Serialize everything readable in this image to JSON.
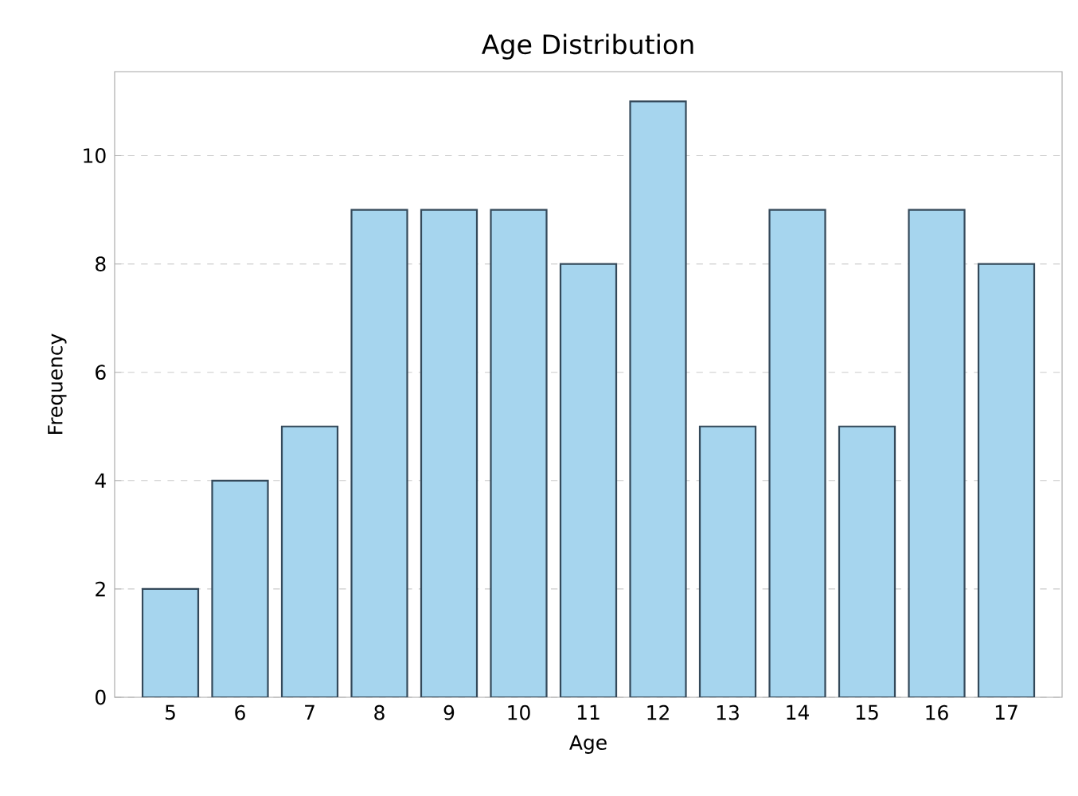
{
  "chart_data": {
    "type": "bar",
    "title": "Age Distribution",
    "xlabel": "Age",
    "ylabel": "Frequency",
    "categories": [
      "5",
      "6",
      "7",
      "8",
      "9",
      "10",
      "11",
      "12",
      "13",
      "14",
      "15",
      "16",
      "17"
    ],
    "values": [
      2,
      4,
      5,
      9,
      9,
      9,
      8,
      11,
      5,
      9,
      5,
      9,
      8
    ],
    "color": "#a6d5ee",
    "ylim": [
      0,
      11.55
    ],
    "yticks": [
      0,
      2,
      4,
      6,
      8,
      10
    ],
    "grid": "y"
  }
}
